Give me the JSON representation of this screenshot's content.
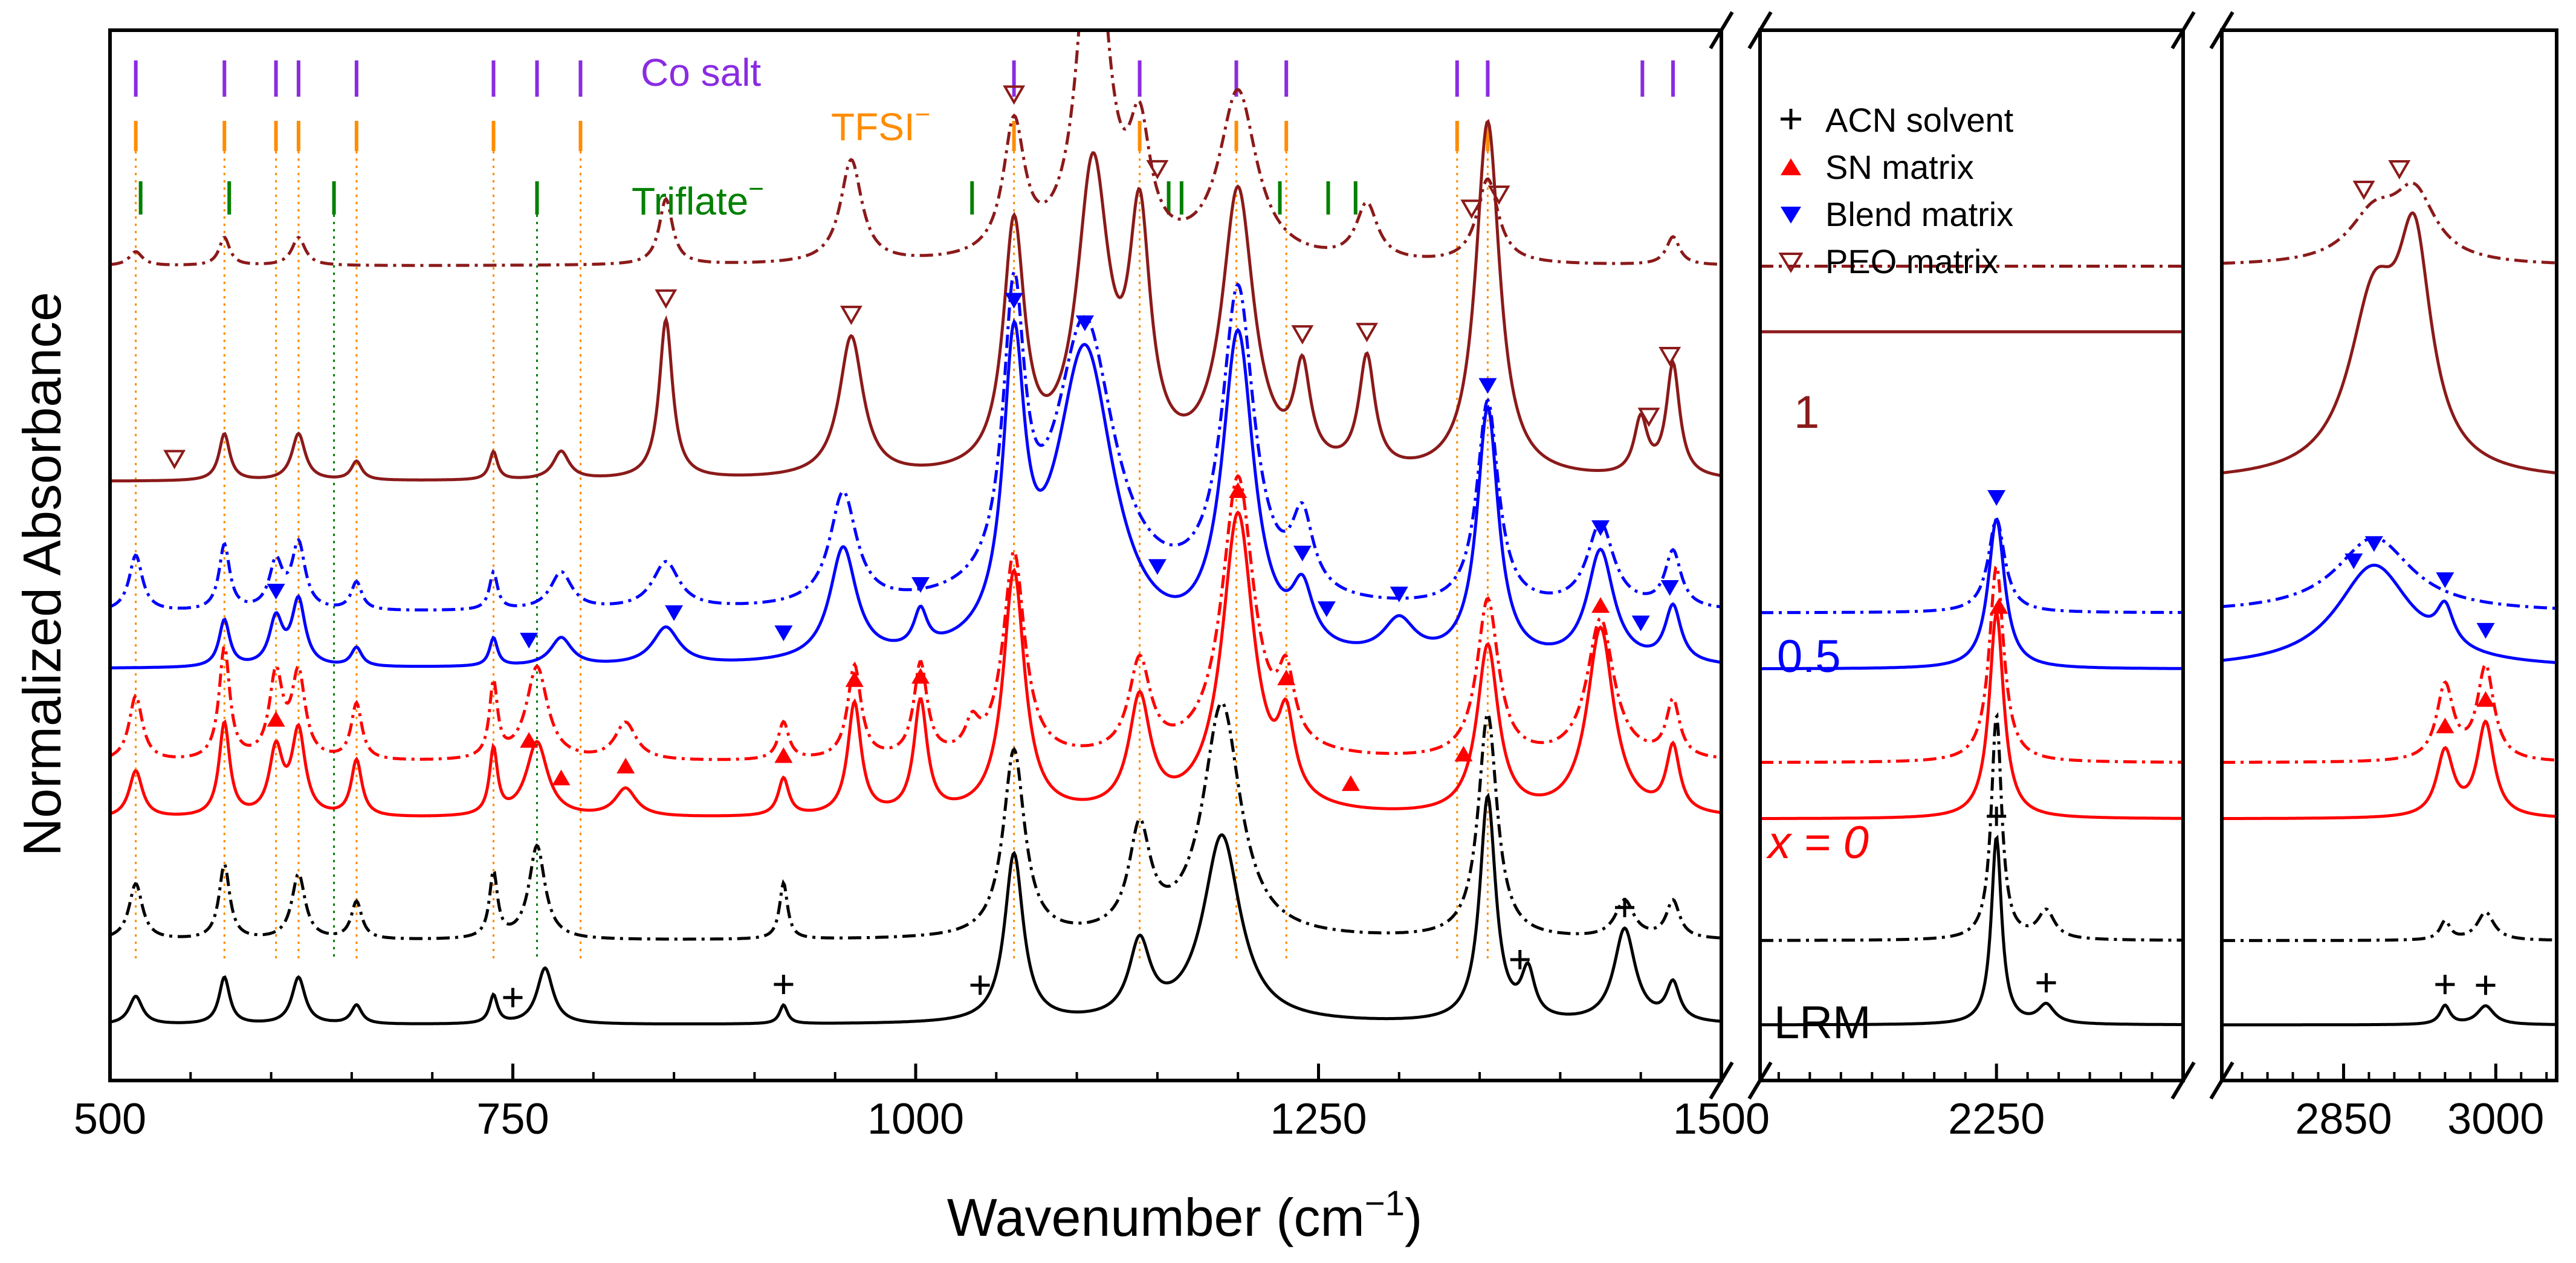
{
  "chart_data": {
    "type": "line",
    "xlabel": "Wavenumber (cm",
    "xlabel_exp": "−1",
    "xlabel_close": ")",
    "ylabel": "Normalized Absorbance",
    "x_segments": [
      {
        "range": [
          500,
          1500
        ],
        "ticks": [
          500,
          750,
          1000,
          1250,
          1500
        ],
        "tick_labels": [
          "500",
          "750",
          "1000",
          "1250",
          "1500"
        ]
      },
      {
        "range": [
          2060,
          2400
        ],
        "ticks": [
          2250
        ],
        "tick_labels": [
          "2250"
        ]
      },
      {
        "range": [
          2730,
          3060
        ],
        "ticks": [
          2850,
          3000
        ],
        "tick_labels": [
          "2850",
          "3000"
        ]
      }
    ],
    "legend": {
      "placement": "top-right",
      "entries": [
        {
          "marker": "plus",
          "label": "ACN solvent",
          "color": "#000000"
        },
        {
          "marker": "triangle-up",
          "label": "SN matrix",
          "color": "#ff0000"
        },
        {
          "marker": "triangle-down",
          "label": "Blend matrix",
          "color": "#0000ff"
        },
        {
          "marker": "triangle-down-open",
          "label": "PEO matrix",
          "color": "#8b1a1a"
        }
      ]
    },
    "reference_lines": [
      {
        "label": "Co salt",
        "color": "#8a2be2",
        "positions": [
          516,
          571,
          603,
          617,
          653,
          738,
          765,
          792,
          1061,
          1139,
          1199,
          1230,
          1336,
          1355,
          1451,
          1470
        ]
      },
      {
        "label": "TFSI",
        "label_sup": "−",
        "color": "#ff8c00",
        "positions": [
          516,
          571,
          603,
          617,
          653,
          738,
          792,
          1061,
          1139,
          1199,
          1230,
          1336,
          1355
        ]
      },
      {
        "label": "Triflate",
        "label_sup": "−",
        "color": "#008000",
        "positions": [
          519,
          574,
          639,
          765,
          1035,
          1157,
          1165,
          1226,
          1256,
          1273
        ]
      }
    ],
    "group_labels": [
      {
        "text": "1",
        "color": "#8b1a1a"
      },
      {
        "text": "0.5",
        "color": "#0000ff"
      },
      {
        "text": "x = 0",
        "color": "#ff0000"
      },
      {
        "text": "LRM",
        "color": "#000000"
      }
    ],
    "series": [
      {
        "name": "",
        "color": "#8b1a1a",
        "dash": "dashdot",
        "offset": 0.85,
        "peaks": [
          [
            516,
            0.015,
            5
          ],
          [
            571,
            0.03,
            4
          ],
          [
            617,
            0.03,
            5
          ],
          [
            845,
            0.07,
            5
          ],
          [
            960,
            0.11,
            8
          ],
          [
            1061,
            0.14,
            8
          ],
          [
            1110,
            0.42,
            10
          ],
          [
            1139,
            0.12,
            8
          ],
          [
            1200,
            0.18,
            14
          ],
          [
            1280,
            0.06,
            8
          ],
          [
            1355,
            0.09,
            8
          ],
          [
            1470,
            0.03,
            5
          ]
        ],
        "flat": [
          [
            2060,
            0.0
          ],
          [
            2400,
            0.0
          ]
        ],
        "peaks_hi": [
          [
            2880,
            0.05,
            30
          ],
          [
            2920,
            0.07,
            25
          ]
        ]
      },
      {
        "name": "",
        "color": "#8b1a1a",
        "dash": "solid",
        "offset": 0.62,
        "peaks": [
          [
            571,
            0.05,
            4
          ],
          [
            617,
            0.05,
            5
          ],
          [
            653,
            0.02,
            4
          ],
          [
            738,
            0.03,
            3
          ],
          [
            780,
            0.03,
            6
          ],
          [
            845,
            0.17,
            5
          ],
          [
            960,
            0.15,
            9
          ],
          [
            1061,
            0.26,
            8
          ],
          [
            1110,
            0.32,
            12
          ],
          [
            1139,
            0.25,
            8
          ],
          [
            1200,
            0.3,
            12
          ],
          [
            1240,
            0.1,
            6
          ],
          [
            1280,
            0.12,
            6
          ],
          [
            1355,
            0.38,
            9
          ],
          [
            1450,
            0.06,
            5
          ],
          [
            1470,
            0.12,
            5
          ]
        ],
        "flat": [
          [
            2060,
            0.16
          ],
          [
            2400,
            0.16
          ]
        ],
        "peaks_hi": [
          [
            2880,
            0.18,
            30
          ],
          [
            2920,
            0.22,
            20
          ]
        ]
      },
      {
        "name": "",
        "color": "#0000ff",
        "dash": "dashdot",
        "offset": 0.48,
        "peaks": [
          [
            516,
            0.06,
            5
          ],
          [
            571,
            0.07,
            4
          ],
          [
            603,
            0.05,
            5
          ],
          [
            617,
            0.07,
            5
          ],
          [
            653,
            0.03,
            4
          ],
          [
            738,
            0.04,
            3
          ],
          [
            780,
            0.04,
            8
          ],
          [
            845,
            0.05,
            10
          ],
          [
            955,
            0.12,
            10
          ],
          [
            1061,
            0.3,
            8
          ],
          [
            1105,
            0.3,
            22
          ],
          [
            1200,
            0.33,
            12
          ],
          [
            1240,
            0.08,
            8
          ],
          [
            1355,
            0.22,
            8
          ],
          [
            1425,
            0.09,
            10
          ],
          [
            1470,
            0.06,
            6
          ]
        ],
        "flat": [
          [
            2060,
            0.0
          ],
          [
            2400,
            0.0
          ]
        ],
        "peaks_hi": [
          [
            2250,
            0.1,
            8
          ],
          [
            2880,
            0.08,
            45
          ]
        ]
      },
      {
        "name": "",
        "color": "#0000ff",
        "dash": "solid",
        "offset": 0.42,
        "peaks": [
          [
            571,
            0.05,
            4
          ],
          [
            603,
            0.05,
            5
          ],
          [
            617,
            0.07,
            5
          ],
          [
            653,
            0.02,
            4
          ],
          [
            738,
            0.03,
            3
          ],
          [
            780,
            0.03,
            8
          ],
          [
            845,
            0.04,
            10
          ],
          [
            955,
            0.12,
            10
          ],
          [
            1003,
            0.04,
            5
          ],
          [
            1061,
            0.3,
            8
          ],
          [
            1105,
            0.33,
            22
          ],
          [
            1200,
            0.34,
            12
          ],
          [
            1240,
            0.06,
            8
          ],
          [
            1300,
            0.04,
            12
          ],
          [
            1355,
            0.27,
            8
          ],
          [
            1425,
            0.12,
            10
          ],
          [
            1470,
            0.06,
            6
          ]
        ],
        "flat": [
          [
            2060,
            0.0
          ],
          [
            2400,
            0.0
          ]
        ],
        "peaks_hi": [
          [
            2250,
            0.16,
            8
          ],
          [
            2880,
            0.11,
            45
          ],
          [
            2950,
            0.04,
            10
          ]
        ]
      },
      {
        "name": "",
        "color": "#ff0000",
        "dash": "dashdot",
        "offset": 0.32,
        "peaks": [
          [
            516,
            0.07,
            5
          ],
          [
            571,
            0.12,
            4
          ],
          [
            603,
            0.09,
            5
          ],
          [
            617,
            0.09,
            5
          ],
          [
            653,
            0.06,
            4
          ],
          [
            738,
            0.08,
            3
          ],
          [
            765,
            0.1,
            8
          ],
          [
            820,
            0.04,
            8
          ],
          [
            918,
            0.04,
            4
          ],
          [
            962,
            0.1,
            5
          ],
          [
            1003,
            0.1,
            5
          ],
          [
            1035,
            0.03,
            5
          ],
          [
            1061,
            0.22,
            8
          ],
          [
            1139,
            0.1,
            8
          ],
          [
            1200,
            0.3,
            12
          ],
          [
            1230,
            0.07,
            6
          ],
          [
            1355,
            0.17,
            8
          ],
          [
            1425,
            0.15,
            10
          ],
          [
            1470,
            0.06,
            5
          ]
        ],
        "flat": [
          [
            2060,
            0.0
          ],
          [
            2400,
            0.0
          ]
        ],
        "peaks_hi": [
          [
            2250,
            0.21,
            7
          ],
          [
            2950,
            0.08,
            10
          ],
          [
            2990,
            0.1,
            10
          ]
        ]
      },
      {
        "name": "",
        "color": "#ff0000",
        "dash": "solid",
        "offset": 0.26,
        "peaks": [
          [
            516,
            0.05,
            5
          ],
          [
            571,
            0.1,
            4
          ],
          [
            603,
            0.07,
            5
          ],
          [
            617,
            0.09,
            5
          ],
          [
            653,
            0.06,
            4
          ],
          [
            738,
            0.07,
            3
          ],
          [
            765,
            0.08,
            8
          ],
          [
            820,
            0.03,
            8
          ],
          [
            918,
            0.04,
            4
          ],
          [
            962,
            0.12,
            5
          ],
          [
            1003,
            0.12,
            5
          ],
          [
            1061,
            0.26,
            8
          ],
          [
            1139,
            0.12,
            8
          ],
          [
            1200,
            0.32,
            12
          ],
          [
            1230,
            0.08,
            6
          ],
          [
            1355,
            0.18,
            8
          ],
          [
            1425,
            0.2,
            10
          ],
          [
            1470,
            0.07,
            5
          ]
        ],
        "flat": [
          [
            2060,
            0.0
          ],
          [
            2400,
            0.0
          ]
        ],
        "peaks_hi": [
          [
            2250,
            0.22,
            7
          ],
          [
            2950,
            0.07,
            10
          ],
          [
            2990,
            0.1,
            10
          ]
        ]
      },
      {
        "name": "",
        "color": "#000000",
        "dash": "dashdot",
        "offset": 0.13,
        "peaks": [
          [
            516,
            0.06,
            5
          ],
          [
            571,
            0.08,
            4
          ],
          [
            617,
            0.07,
            5
          ],
          [
            653,
            0.04,
            4
          ],
          [
            738,
            0.07,
            3
          ],
          [
            765,
            0.1,
            6
          ],
          [
            918,
            0.06,
            3
          ],
          [
            1061,
            0.2,
            8
          ],
          [
            1139,
            0.11,
            8
          ],
          [
            1190,
            0.25,
            14
          ],
          [
            1355,
            0.24,
            7
          ],
          [
            1440,
            0.04,
            7
          ],
          [
            1470,
            0.04,
            5
          ]
        ],
        "flat": [
          [
            2060,
            0.0
          ],
          [
            2400,
            0.0
          ]
        ],
        "peaks_hi": [
          [
            2250,
            0.24,
            5
          ],
          [
            2290,
            0.03,
            8
          ],
          [
            2950,
            0.02,
            6
          ],
          [
            2990,
            0.03,
            10
          ]
        ]
      },
      {
        "name": "",
        "color": "#000000",
        "dash": "solid",
        "offset": 0.04,
        "peaks": [
          [
            516,
            0.03,
            5
          ],
          [
            571,
            0.05,
            4
          ],
          [
            617,
            0.05,
            5
          ],
          [
            653,
            0.02,
            4
          ],
          [
            738,
            0.03,
            3
          ],
          [
            770,
            0.06,
            6
          ],
          [
            918,
            0.02,
            3
          ],
          [
            1061,
            0.18,
            7
          ],
          [
            1139,
            0.08,
            8
          ],
          [
            1190,
            0.2,
            14
          ],
          [
            1355,
            0.24,
            6
          ],
          [
            1380,
            0.05,
            5
          ],
          [
            1440,
            0.1,
            8
          ],
          [
            1470,
            0.04,
            5
          ]
        ],
        "flat": [
          [
            2060,
            0.0
          ],
          [
            2400,
            0.0
          ]
        ],
        "peaks_hi": [
          [
            2250,
            0.2,
            5
          ],
          [
            2290,
            0.02,
            8
          ],
          [
            2950,
            0.02,
            6
          ],
          [
            2990,
            0.02,
            10
          ]
        ]
      }
    ]
  }
}
